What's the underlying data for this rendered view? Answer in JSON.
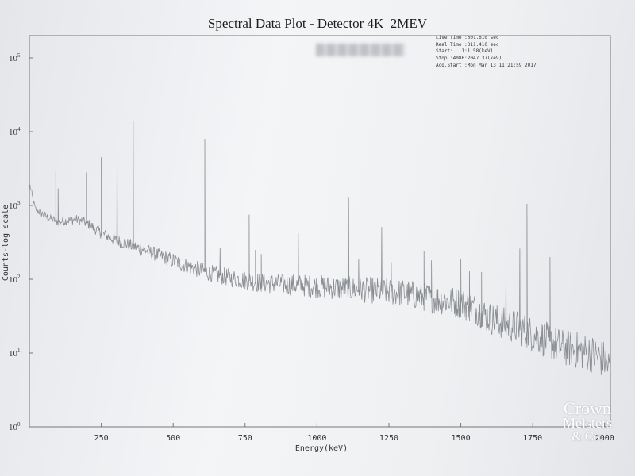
{
  "chart_data": {
    "type": "line",
    "title": "Spectral Data Plot - Detector 4K_2MEV",
    "xlabel": "Energy(keV)",
    "ylabel": "Counts-log scale",
    "xlim": [
      0,
      2020
    ],
    "ylim": [
      1,
      200000
    ],
    "yscale": "log",
    "x_ticks": [
      250,
      500,
      750,
      1000,
      1250,
      1500,
      1750,
      2000
    ],
    "x_tick_labels": [
      "250",
      "500",
      "750",
      "1000",
      "1250",
      "1500",
      "1750",
      "2000"
    ],
    "y_ticks": [
      1,
      10,
      100,
      1000,
      10000,
      100000
    ],
    "y_tick_bases": [
      "10",
      "10",
      "10",
      "10",
      "10",
      "10"
    ],
    "y_tick_exps": [
      "0",
      "1",
      "2",
      "3",
      "4",
      "5"
    ],
    "grid": false,
    "series_color": "#8a8d92",
    "baseline": [
      [
        0,
        2000
      ],
      [
        20,
        900
      ],
      [
        60,
        700
      ],
      [
        100,
        600
      ],
      [
        160,
        650
      ],
      [
        200,
        580
      ],
      [
        250,
        420
      ],
      [
        300,
        340
      ],
      [
        350,
        290
      ],
      [
        400,
        250
      ],
      [
        450,
        210
      ],
      [
        500,
        180
      ],
      [
        550,
        150
      ],
      [
        600,
        130
      ],
      [
        650,
        115
      ],
      [
        700,
        105
      ],
      [
        800,
        90
      ],
      [
        900,
        85
      ],
      [
        1000,
        80
      ],
      [
        1100,
        75
      ],
      [
        1200,
        70
      ],
      [
        1300,
        65
      ],
      [
        1400,
        55
      ],
      [
        1500,
        48
      ],
      [
        1550,
        40
      ],
      [
        1600,
        30
      ],
      [
        1650,
        25
      ],
      [
        1700,
        22
      ],
      [
        1750,
        18
      ],
      [
        1800,
        15
      ],
      [
        1850,
        12
      ],
      [
        1900,
        11
      ],
      [
        1950,
        10
      ],
      [
        2000,
        8
      ],
      [
        2020,
        6
      ]
    ],
    "peaks": [
      [
        92,
        3000
      ],
      [
        100,
        1700
      ],
      [
        198,
        2800
      ],
      [
        250,
        4500
      ],
      [
        305,
        9000
      ],
      [
        361,
        14000
      ],
      [
        610,
        8000
      ],
      [
        663,
        270
      ],
      [
        764,
        750
      ],
      [
        786,
        250
      ],
      [
        806,
        220
      ],
      [
        935,
        420
      ],
      [
        1110,
        1300
      ],
      [
        1145,
        190
      ],
      [
        1225,
        510
      ],
      [
        1258,
        170
      ],
      [
        1372,
        240
      ],
      [
        1398,
        180
      ],
      [
        1500,
        190
      ],
      [
        1530,
        130
      ],
      [
        1572,
        125
      ],
      [
        1657,
        160
      ],
      [
        1705,
        260
      ],
      [
        1730,
        1050
      ],
      [
        1810,
        200
      ]
    ]
  },
  "info": {
    "live_time": "Live Time :301.610 sec",
    "real_time": "Real Time :311.410 sec",
    "start": "Start:   1:1.58(keV)",
    "stop": "Stop :4086:2047.37(keV)",
    "acq_start": "Acq.Start :Mon Mar 13 11:21:59 2017"
  },
  "watermark": {
    "line1": "Crown",
    "line2": "Meisters",
    "line3": "& Co."
  }
}
